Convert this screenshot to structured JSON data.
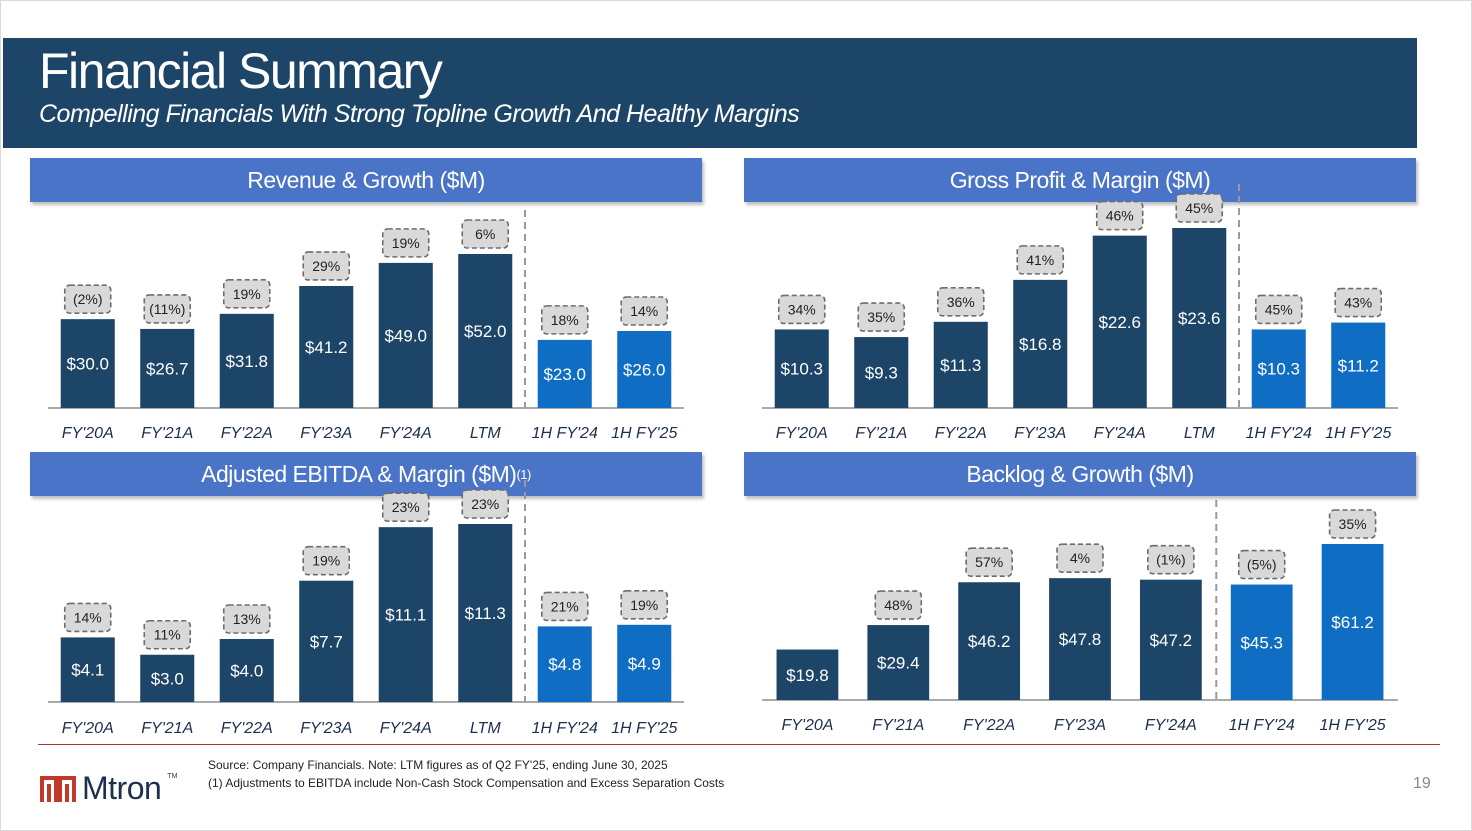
{
  "header": {
    "title": "Financial Summary",
    "subtitle": "Compelling Financials With Strong Topline Growth And Healthy Margins"
  },
  "colors": {
    "header_bg": "#1d4568",
    "panel_title_bg": "#4a74c7",
    "bar_dark": "#1d4568",
    "bar_light": "#0f6ec4",
    "pct_box_bg": "#d9d9d9",
    "footer_rule": "#a83232",
    "logo_red": "#c0392b"
  },
  "chart_data": [
    {
      "id": "revenue",
      "type": "bar",
      "title": "Revenue & Growth ($M)",
      "categories": [
        "FY'20A",
        "FY'21A",
        "FY'22A",
        "FY'23A",
        "FY'24A",
        "LTM",
        "1H FY'24",
        "1H FY'25"
      ],
      "values": [
        30.0,
        26.7,
        31.8,
        41.2,
        49.0,
        52.0,
        23.0,
        26.0
      ],
      "value_labels": [
        "$30.0",
        "$26.7",
        "$31.8",
        "$41.2",
        "$49.0",
        "$52.0",
        "$23.0",
        "$26.0"
      ],
      "pct_labels": [
        "(2%)",
        "(11%)",
        "19%",
        "29%",
        "19%",
        "6%",
        "18%",
        "14%"
      ],
      "highlight_from_index": 6
    },
    {
      "id": "gross-profit",
      "type": "bar",
      "title": "Gross Profit & Margin ($M)",
      "categories": [
        "FY'20A",
        "FY'21A",
        "FY'22A",
        "FY'23A",
        "FY'24A",
        "LTM",
        "1H FY'24",
        "1H FY'25"
      ],
      "values": [
        10.3,
        9.3,
        11.3,
        16.8,
        22.6,
        23.6,
        10.3,
        11.2
      ],
      "value_labels": [
        "$10.3",
        "$9.3",
        "$11.3",
        "$16.8",
        "$22.6",
        "$23.6",
        "$10.3",
        "$11.2"
      ],
      "pct_labels": [
        "34%",
        "35%",
        "36%",
        "41%",
        "46%",
        "45%",
        "45%",
        "43%"
      ],
      "highlight_from_index": 6
    },
    {
      "id": "ebitda",
      "type": "bar",
      "title": "Adjusted EBITDA & Margin ($M)",
      "title_footnote": "(1)",
      "categories": [
        "FY'20A",
        "FY'21A",
        "FY'22A",
        "FY'23A",
        "FY'24A",
        "LTM",
        "1H FY'24",
        "1H FY'25"
      ],
      "values": [
        4.1,
        3.0,
        4.0,
        7.7,
        11.1,
        11.3,
        4.8,
        4.9
      ],
      "value_labels": [
        "$4.1",
        "$3.0",
        "$4.0",
        "$7.7",
        "$11.1",
        "$11.3",
        "$4.8",
        "$4.9"
      ],
      "pct_labels": [
        "14%",
        "11%",
        "13%",
        "19%",
        "23%",
        "23%",
        "21%",
        "19%"
      ],
      "highlight_from_index": 6
    },
    {
      "id": "backlog",
      "type": "bar",
      "title": "Backlog & Growth ($M)",
      "categories": [
        "FY'20A",
        "FY'21A",
        "FY'22A",
        "FY'23A",
        "FY'24A",
        "1H FY'24",
        "1H FY'25"
      ],
      "values": [
        19.8,
        29.4,
        46.2,
        47.8,
        47.2,
        45.3,
        61.2
      ],
      "value_labels": [
        "$19.8",
        "$29.4",
        "$46.2",
        "$47.8",
        "$47.2",
        "$45.3",
        "$61.2"
      ],
      "pct_labels": [
        "",
        "48%",
        "57%",
        "4%",
        "(1%)",
        "(5%)",
        "35%"
      ],
      "highlight_from_index": 5
    }
  ],
  "footer": {
    "source_note": "Source: Company Financials. Note: LTM figures as of Q2 FY'25, ending June 30, 2025",
    "footnote": "(1) Adjustments to EBITDA include Non-Cash Stock Compensation and Excess Separation Costs",
    "logo_text": "Mtron",
    "logo_tm": "TM",
    "page_number": "19"
  }
}
